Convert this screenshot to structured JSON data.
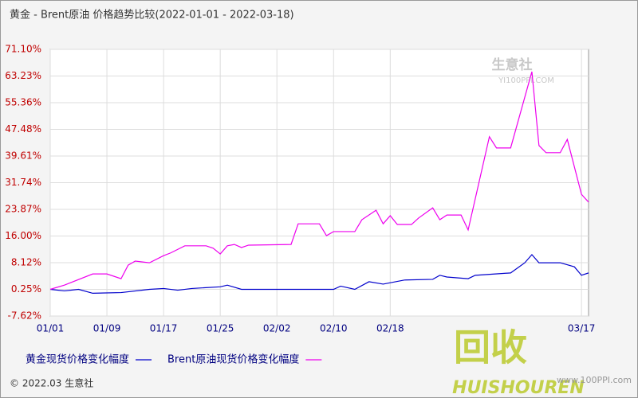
{
  "chart_data": {
    "type": "line",
    "title": "黄金 - Brent原油 价格趋势比较(2022-01-01 - 2022-03-18)",
    "xlim": [
      "01/01",
      "03/18"
    ],
    "xticks": [
      "01/01",
      "01/09",
      "01/17",
      "01/25",
      "02/02",
      "02/10",
      "02/18",
      "03/17"
    ],
    "ylim": [
      -7.62,
      71.1
    ],
    "yticks": [
      {
        "value": -7.62,
        "label": "-7.62%"
      },
      {
        "value": 0.25,
        "label": "0.25%"
      },
      {
        "value": 8.12,
        "label": "8.12%"
      },
      {
        "value": 16,
        "label": "16.00%"
      },
      {
        "value": 23.87,
        "label": "23.87%"
      },
      {
        "value": 31.74,
        "label": "31.74%"
      },
      {
        "value": 39.61,
        "label": "39.61%"
      },
      {
        "value": 47.48,
        "label": "47.48%"
      },
      {
        "value": 55.36,
        "label": "55.36%"
      },
      {
        "value": 63.23,
        "label": "63.23%"
      },
      {
        "value": 71.1,
        "label": "71.10%"
      }
    ],
    "grid": true,
    "series": [
      {
        "name": "黄金现货价格变化幅度",
        "color": "#0000cc",
        "x": [
          "01/01",
          "01/03",
          "01/05",
          "01/07",
          "01/11",
          "01/15",
          "01/17",
          "01/19",
          "01/21",
          "01/25",
          "01/26",
          "01/28",
          "02/10",
          "02/11",
          "02/13",
          "02/15",
          "02/17",
          "02/20",
          "02/24",
          "02/25",
          "02/26",
          "03/01",
          "03/02",
          "03/07",
          "03/09",
          "03/10",
          "03/11",
          "03/14",
          "03/16",
          "03/17",
          "03/18"
        ],
        "values": [
          0.25,
          -0.2,
          0.25,
          -0.9,
          -0.7,
          0.25,
          0.5,
          0,
          0.5,
          1.0,
          1.5,
          0.25,
          0.25,
          1.2,
          0.25,
          2.5,
          1.8,
          3.0,
          3.2,
          4.4,
          3.9,
          3.4,
          4.4,
          5.1,
          8.1,
          10.5,
          8.1,
          8.1,
          6.9,
          4.4,
          5.1
        ]
      },
      {
        "name": "Brent原油现货价格变化幅度",
        "color": "#ee00ee",
        "x": [
          "01/01",
          "01/03",
          "01/07",
          "01/09",
          "01/11",
          "01/12",
          "01/13",
          "01/15",
          "01/17",
          "01/18",
          "01/20",
          "01/23",
          "01/24",
          "01/25",
          "01/26",
          "01/27",
          "01/28",
          "01/29",
          "02/04",
          "02/05",
          "02/08",
          "02/09",
          "02/10",
          "02/13",
          "02/14",
          "02/16",
          "02/17",
          "02/18",
          "02/19",
          "02/21",
          "02/22",
          "02/24",
          "02/25",
          "02/26",
          "02/28",
          "03/01",
          "03/04",
          "03/05",
          "03/07",
          "03/10",
          "03/11",
          "03/12",
          "03/14",
          "03/15",
          "03/17",
          "03/18"
        ],
        "values": [
          0.25,
          1.5,
          4.8,
          4.8,
          3.4,
          7.4,
          8.6,
          8.1,
          10.2,
          11,
          13.1,
          13.1,
          12.4,
          10.7,
          13.1,
          13.5,
          12.6,
          13.3,
          13.5,
          19.6,
          19.6,
          16.1,
          17.3,
          17.3,
          20.8,
          23.6,
          19.6,
          22,
          19.4,
          19.4,
          21.3,
          24.3,
          20.8,
          22.2,
          22.2,
          17.8,
          45.3,
          42,
          42,
          64.5,
          42.7,
          40.6,
          40.6,
          44.5,
          28.3,
          26
        ]
      }
    ],
    "legend": "bottom",
    "watermark": "生意社",
    "watermark_site": "YI100PPI.COM",
    "logo_text": "回收",
    "logo_brand": "HUISHOUREN",
    "logo_site": "www.100PPI.com",
    "footer": "© 2022.03 生意社"
  }
}
